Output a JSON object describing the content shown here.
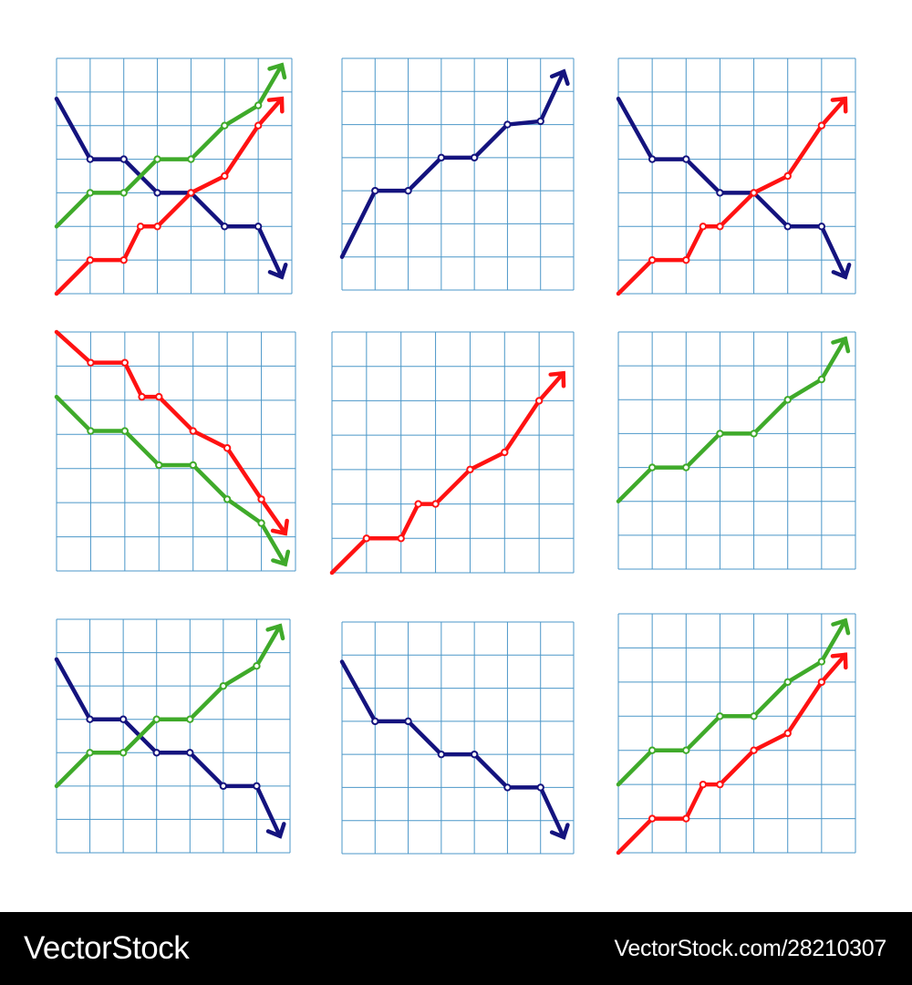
{
  "colors": {
    "grid": "#4b97c8",
    "navy": "#14137e",
    "red": "#ff1212",
    "green": "#3faa2a",
    "banner_bg": "#000000",
    "banner_text": "#ffffff"
  },
  "banner": {
    "logo": "VectorStock",
    "credit": "VectorStock.com/28210307"
  },
  "chart_data": [
    {
      "type": "line",
      "grid": true,
      "xlim": [
        0,
        7
      ],
      "ylim": [
        0,
        7
      ],
      "series": [
        {
          "color": "navy",
          "arrow": "down",
          "x": [
            0,
            1,
            2,
            3,
            4,
            5,
            6,
            6.7
          ],
          "y": [
            5.8,
            4,
            4,
            3,
            3,
            2,
            2,
            0.5
          ]
        },
        {
          "color": "green",
          "arrow": "up",
          "x": [
            0,
            1,
            2,
            3,
            4,
            5,
            6,
            6.7
          ],
          "y": [
            2,
            3,
            3,
            4,
            4,
            5,
            5.6,
            6.8
          ]
        },
        {
          "color": "red",
          "arrow": "up",
          "x": [
            0,
            1,
            2,
            2.5,
            3,
            4,
            5,
            6,
            6.7
          ],
          "y": [
            0,
            1,
            1,
            2,
            2,
            3,
            3.5,
            5,
            5.8
          ]
        }
      ]
    },
    {
      "type": "line",
      "grid": true,
      "xlim": [
        0,
        7
      ],
      "ylim": [
        0,
        7
      ],
      "series": [
        {
          "color": "navy",
          "arrow": "up",
          "x": [
            0,
            1,
            2,
            3,
            4,
            5,
            6,
            6.7
          ],
          "y": [
            1,
            3,
            3,
            4,
            4,
            5,
            5.1,
            6.6
          ]
        }
      ]
    },
    {
      "type": "line",
      "grid": true,
      "xlim": [
        0,
        7
      ],
      "ylim": [
        0,
        7
      ],
      "series": [
        {
          "color": "navy",
          "arrow": "down",
          "x": [
            0,
            1,
            2,
            3,
            4,
            5,
            6,
            6.7
          ],
          "y": [
            5.8,
            4,
            4,
            3,
            3,
            2,
            2,
            0.5
          ]
        },
        {
          "color": "red",
          "arrow": "up",
          "x": [
            0,
            1,
            2,
            2.5,
            3,
            4,
            5,
            6,
            6.7
          ],
          "y": [
            0,
            1,
            1,
            2,
            2,
            3,
            3.5,
            5,
            5.8
          ]
        }
      ]
    },
    {
      "type": "line",
      "grid": true,
      "xlim": [
        0,
        7
      ],
      "ylim": [
        0,
        7
      ],
      "series": [
        {
          "color": "red",
          "arrow": "down",
          "x": [
            0,
            1,
            2,
            2.5,
            3,
            4,
            5,
            6,
            6.7
          ],
          "y": [
            7,
            6.1,
            6.1,
            5.1,
            5.1,
            4.1,
            3.6,
            2.1,
            1.1
          ]
        },
        {
          "color": "green",
          "arrow": "down",
          "x": [
            0,
            1,
            2,
            3,
            4,
            5,
            6,
            6.7
          ],
          "y": [
            5.1,
            4.1,
            4.1,
            3.1,
            3.1,
            2.1,
            1.4,
            0.2
          ]
        }
      ]
    },
    {
      "type": "line",
      "grid": true,
      "xlim": [
        0,
        7
      ],
      "ylim": [
        0,
        7
      ],
      "series": [
        {
          "color": "red",
          "arrow": "up",
          "x": [
            0,
            1,
            2,
            2.5,
            3,
            4,
            5,
            6,
            6.7
          ],
          "y": [
            0,
            1,
            1,
            2,
            2,
            3,
            3.5,
            5,
            5.8
          ]
        }
      ]
    },
    {
      "type": "line",
      "grid": true,
      "xlim": [
        0,
        7
      ],
      "ylim": [
        0,
        7
      ],
      "series": [
        {
          "color": "green",
          "arrow": "up",
          "x": [
            0,
            1,
            2,
            3,
            4,
            5,
            6,
            6.7
          ],
          "y": [
            2,
            3,
            3,
            4,
            4,
            5,
            5.6,
            6.8
          ]
        }
      ]
    },
    {
      "type": "line",
      "grid": true,
      "xlim": [
        0,
        7
      ],
      "ylim": [
        0,
        7
      ],
      "series": [
        {
          "color": "navy",
          "arrow": "down",
          "x": [
            0,
            1,
            2,
            3,
            4,
            5,
            6,
            6.7
          ],
          "y": [
            5.8,
            4,
            4,
            3,
            3,
            2,
            2,
            0.5
          ]
        },
        {
          "color": "green",
          "arrow": "up",
          "x": [
            0,
            1,
            2,
            3,
            4,
            5,
            6,
            6.7
          ],
          "y": [
            2,
            3,
            3,
            4,
            4,
            5,
            5.6,
            6.8
          ]
        }
      ]
    },
    {
      "type": "line",
      "grid": true,
      "xlim": [
        0,
        7
      ],
      "ylim": [
        0,
        7
      ],
      "series": [
        {
          "color": "navy",
          "arrow": "down",
          "x": [
            0,
            1,
            2,
            3,
            4,
            5,
            6,
            6.7
          ],
          "y": [
            5.8,
            4,
            4,
            3,
            3,
            2,
            2,
            0.5
          ]
        }
      ]
    },
    {
      "type": "line",
      "grid": true,
      "xlim": [
        0,
        7
      ],
      "ylim": [
        0,
        7
      ],
      "series": [
        {
          "color": "green",
          "arrow": "up",
          "x": [
            0,
            1,
            2,
            3,
            4,
            5,
            6,
            6.7
          ],
          "y": [
            2,
            3,
            3,
            4,
            4,
            5,
            5.6,
            6.8
          ]
        },
        {
          "color": "red",
          "arrow": "up",
          "x": [
            0,
            1,
            2,
            2.5,
            3,
            4,
            5,
            6,
            6.7
          ],
          "y": [
            0,
            1,
            1,
            2,
            2,
            3,
            3.5,
            5,
            5.8
          ]
        }
      ]
    }
  ]
}
